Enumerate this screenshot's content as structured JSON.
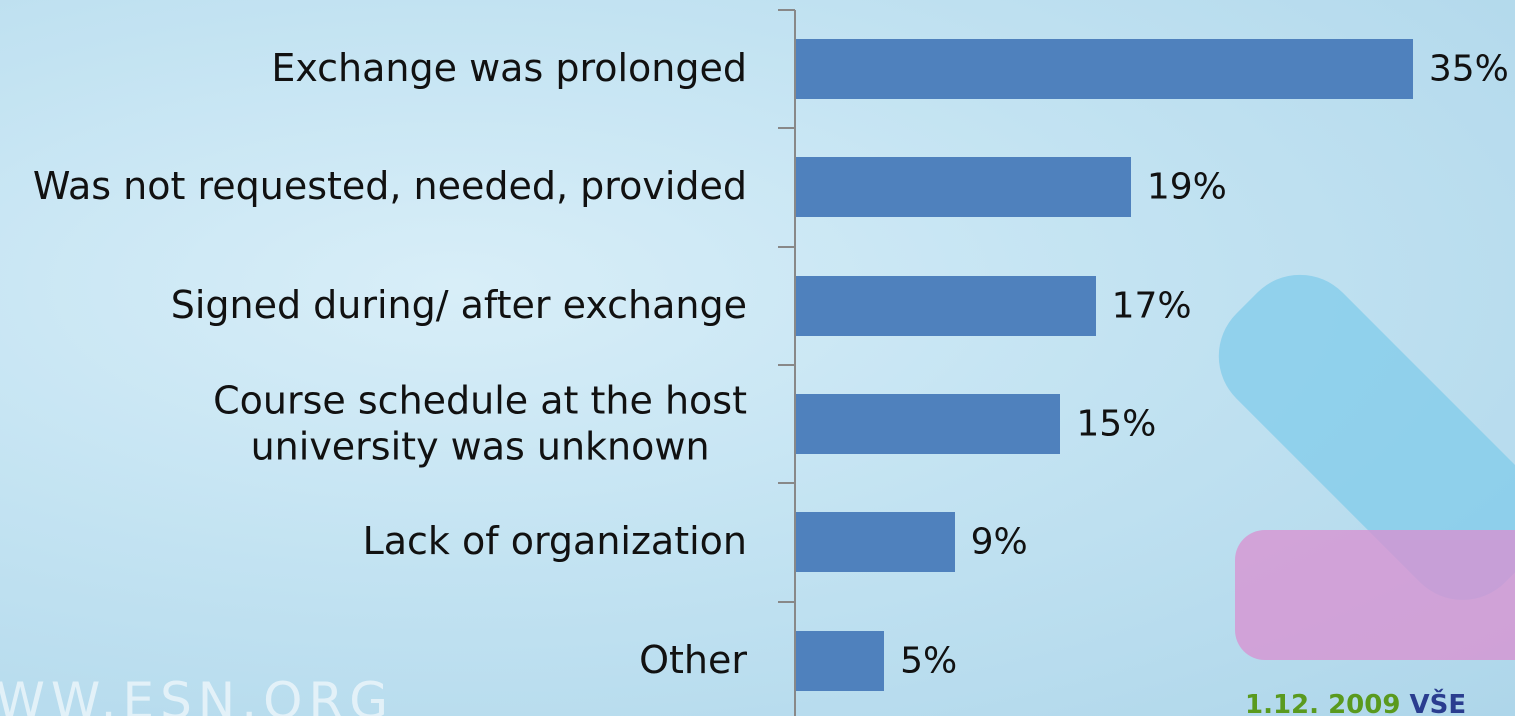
{
  "chart_data": {
    "type": "barh",
    "categories": [
      "Exchange was prolonged",
      "Was not requested, needed, provided",
      "Signed during/ after exchange",
      "Course schedule at the host\nuniversity was unknown",
      "Lack of organization",
      "Other"
    ],
    "values": [
      35,
      19,
      17,
      15,
      9,
      5
    ],
    "value_labels": [
      "35%",
      "19%",
      "17%",
      "15%",
      "9%",
      "5%"
    ],
    "color": "#4f81bd",
    "xlim": [
      0,
      40
    ]
  },
  "footer": {
    "site": "WWW.ESN.ORG",
    "date": "1.12. 2009",
    "place": "VŠE"
  }
}
